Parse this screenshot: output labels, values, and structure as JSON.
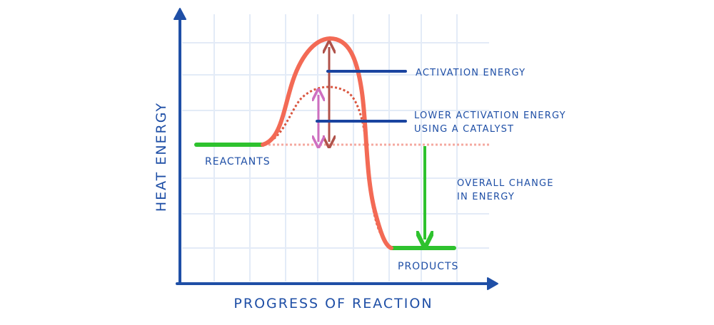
{
  "axes": {
    "y_label": "HEAT ENERGY",
    "x_label": "PROGRESS OF REACTION"
  },
  "labels": {
    "reactants": "REACTANTS",
    "products": "PRODUCTS",
    "activation_energy": "ACTIVATION ENERGY",
    "catalyst_line1": "LOWER ACTIVATION ENERGY",
    "catalyst_line2": "USING A CATALYST",
    "overall_line1": "OVERALL CHANGE",
    "overall_line2": "IN ENERGY"
  },
  "colors": {
    "axis": "#1f4fa6",
    "label": "#1f4fa6",
    "grid": "#e3ebf7",
    "curve": "#f36a55",
    "catalyst_curve": "#d9553f",
    "level": "#2ec22e",
    "energy_arrow": "#b0524a",
    "catalyst_arrow": "#cf6fc0",
    "overall_arrow": "#2ec22e",
    "leader": "#1a44a0",
    "baseline": "#f4a9a0"
  }
}
